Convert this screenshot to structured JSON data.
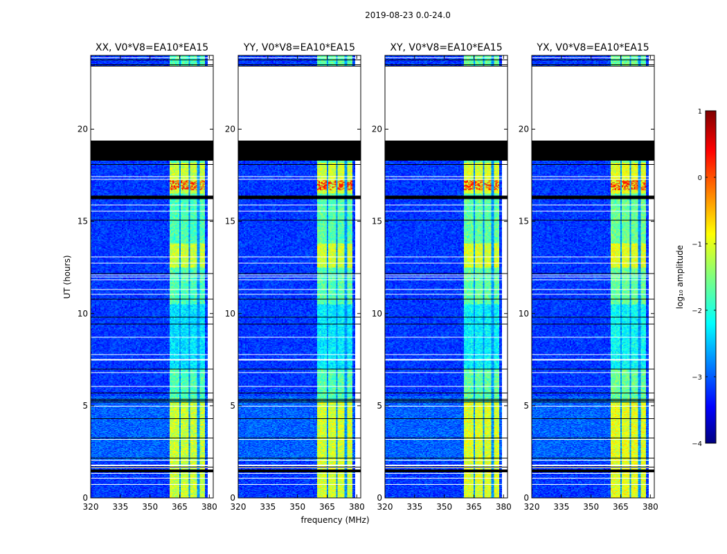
{
  "chart_data": {
    "type": "heatmap",
    "suptitle": "2019-08-23 0.0-24.0",
    "xlabel": "frequency (MHz)",
    "ylabel": "UT (hours)",
    "xlim": [
      320,
      382
    ],
    "ylim": [
      0,
      24
    ],
    "xticks": [
      320,
      335,
      350,
      365,
      380
    ],
    "yticks": [
      0,
      5,
      10,
      15,
      20
    ],
    "panels": [
      {
        "title": "XX, V0*V8=EA10*EA15"
      },
      {
        "title": "YY, V0*V8=EA10*EA15"
      },
      {
        "title": "XY, V0*V8=EA10*EA15"
      },
      {
        "title": "YX, V0*V8=EA10*EA15"
      }
    ],
    "signal_band_mhz": [
      360,
      378
    ],
    "sub_bands_mhz": [
      [
        360,
        364.5
      ],
      [
        365.5,
        369.5
      ],
      [
        370.5,
        373.8
      ],
      [
        374.8,
        378
      ]
    ],
    "no_data_hours": [
      [
        18.3,
        19.4
      ],
      [
        16.2,
        16.4
      ],
      [
        1.4,
        1.55
      ]
    ],
    "flagged_hours": [
      [
        19.4,
        23.4
      ]
    ],
    "colorbar": {
      "label": "log₁₀ amplitude",
      "range": [
        -4,
        1
      ],
      "ticks": [
        1,
        0,
        -1,
        -2,
        -3,
        -4
      ],
      "tick_labels": [
        "1",
        "0",
        "−1",
        "−2",
        "−3",
        "−4"
      ],
      "colormap": "jet"
    }
  }
}
